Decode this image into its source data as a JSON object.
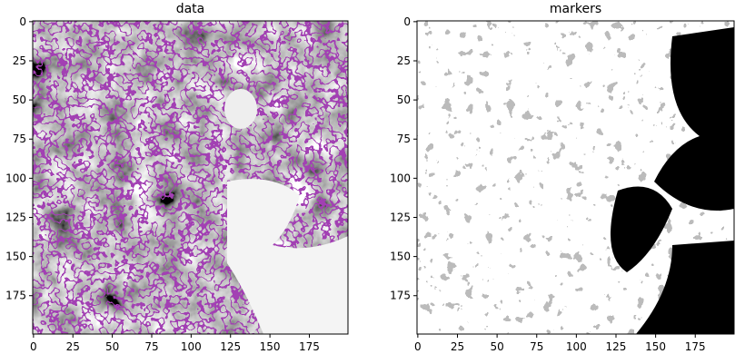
{
  "chart_data": [
    {
      "type": "image",
      "title": "data",
      "xlim": [
        -0.5,
        199.5
      ],
      "ylim": [
        199.5,
        -0.5
      ],
      "xticks": [
        0,
        25,
        50,
        75,
        100,
        125,
        150,
        175
      ],
      "yticks": [
        0,
        25,
        50,
        75,
        100,
        125,
        150,
        175
      ]
    },
    {
      "type": "image",
      "title": "markers",
      "xlim": [
        -0.5,
        199.5
      ],
      "ylim": [
        199.5,
        -0.5
      ],
      "xticks": [
        0,
        25,
        50,
        75,
        100,
        125,
        150,
        175
      ],
      "yticks": [
        0,
        25,
        50,
        75,
        100,
        125,
        150,
        175
      ]
    }
  ]
}
